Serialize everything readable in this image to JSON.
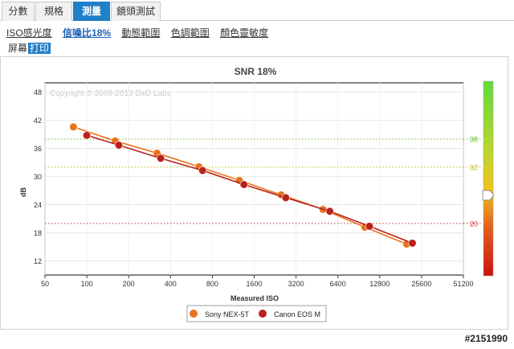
{
  "tabs": [
    {
      "label": "分數",
      "active": false
    },
    {
      "label": "規格",
      "active": false
    },
    {
      "label": "測量",
      "active": true
    },
    {
      "label": "鏡頭測試",
      "active": false
    }
  ],
  "subnav": [
    {
      "label": "ISO感光度",
      "active": false
    },
    {
      "label": "信噪比18%",
      "active": true
    },
    {
      "label": "動態範圍",
      "active": false
    },
    {
      "label": "色調範圍",
      "active": false
    },
    {
      "label": "顏色靈敏度",
      "active": false
    }
  ],
  "view_toggle": {
    "screen": "屏幕",
    "print": "打印",
    "active": "print"
  },
  "chart_data": {
    "type": "line",
    "title": "SNR 18%",
    "xlabel": "Measured ISO",
    "ylabel": "dB",
    "copyright": "Copyright © 2008-2013 DxO Labs",
    "x_scale": "log",
    "x_ticks": [
      "50",
      "100",
      "200",
      "400",
      "800",
      "1600",
      "3200",
      "6400",
      "12800",
      "25600",
      "51200"
    ],
    "x_tick_values": [
      50,
      100,
      200,
      400,
      800,
      1600,
      3200,
      6400,
      12800,
      25600,
      51200
    ],
    "y_ticks": [
      12,
      18,
      24,
      30,
      36,
      42,
      48
    ],
    "xlim": [
      50,
      51200
    ],
    "ylim": [
      9,
      50
    ],
    "grid": true,
    "legend_position": "bottom",
    "series": [
      {
        "name": "Sony NEX-5T",
        "color": "#e8741f",
        "x": [
          80,
          160,
          320,
          640,
          1250,
          2500,
          5000,
          10000,
          20000
        ],
        "y": [
          40.6,
          37.6,
          35.0,
          32.1,
          29.2,
          26.1,
          23.0,
          19.2,
          15.6
        ]
      },
      {
        "name": "Canon EOS M",
        "color": "#b8221c",
        "x": [
          100,
          170,
          340,
          680,
          1350,
          2700,
          5600,
          10800,
          22000
        ],
        "y": [
          38.8,
          36.7,
          33.9,
          31.3,
          28.3,
          25.5,
          22.6,
          19.4,
          15.8
        ]
      }
    ],
    "scale_bar": {
      "labels": [
        "38",
        "32",
        "20"
      ],
      "values": [
        38,
        32,
        20
      ],
      "colors": [
        "#6bbf2a",
        "#c9b81a",
        "#c23b36"
      ],
      "marker_value": 26
    }
  },
  "watermark": "#2151990"
}
